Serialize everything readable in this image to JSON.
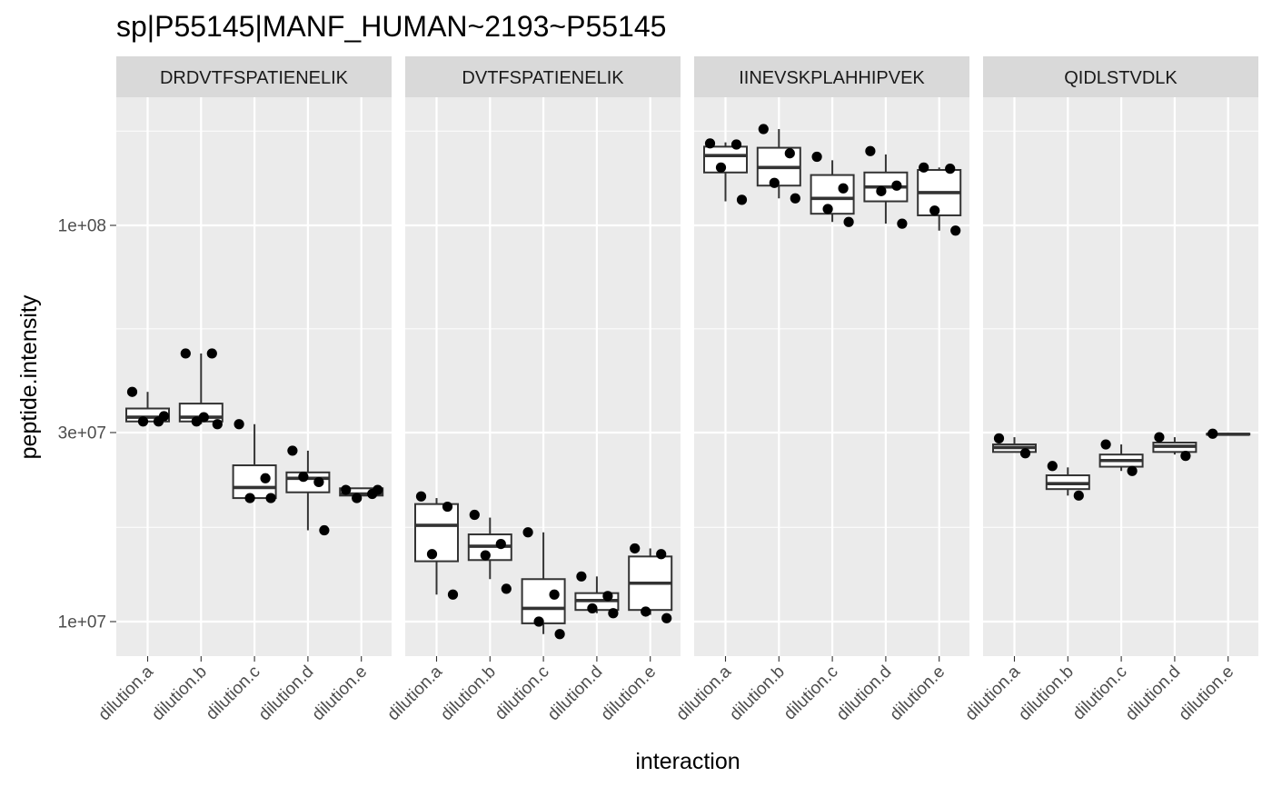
{
  "chart_data": {
    "type": "boxplot",
    "title": "sp|P55145|MANF_HUMAN~2193~P55145",
    "xlabel": "interaction",
    "ylabel": "peptide.intensity",
    "y_scale": "log10",
    "y_ticks": [
      {
        "value": 10000000,
        "label": "1e+07"
      },
      {
        "value": 30000000,
        "label": "3e+07"
      },
      {
        "value": 100000000,
        "label": "1e+08"
      }
    ],
    "categories": [
      "dilution.a",
      "dilution.b",
      "dilution.c",
      "dilution.d",
      "dilution.e"
    ],
    "grid": true,
    "colors": {
      "panel_background": "#ebebeb",
      "grid_line": "#ffffff",
      "strip_background": "#d9d9d9",
      "box_fill": "#ffffff",
      "box_line": "#333333",
      "point": "#000000"
    },
    "facets": [
      {
        "label": "DRDVTFSPATIENELIK",
        "groups": [
          {
            "category": "dilution.a",
            "min": 32000000,
            "q1": 32000000,
            "median": 32800000,
            "q3": 34500000,
            "max": 38000000,
            "points": [
              38000000,
              32000000,
              32000000,
              33000000
            ]
          },
          {
            "category": "dilution.b",
            "min": 31500000,
            "q1": 32000000,
            "median": 32800000,
            "q3": 35500000,
            "max": 47500000,
            "points": [
              47500000,
              47500000,
              32000000,
              31500000,
              32800000
            ]
          },
          {
            "category": "dilution.c",
            "min": 20500000,
            "q1": 20500000,
            "median": 21800000,
            "q3": 24800000,
            "max": 31500000,
            "points": [
              31500000,
              23000000,
              20500000,
              20500000
            ]
          },
          {
            "category": "dilution.d",
            "min": 17000000,
            "q1": 21200000,
            "median": 23000000,
            "q3": 23800000,
            "max": 27000000,
            "points": [
              27000000,
              22500000,
              23200000,
              17000000
            ]
          },
          {
            "category": "dilution.e",
            "min": 20800000,
            "q1": 20800000,
            "median": 21000000,
            "q3": 21700000,
            "max": 21700000,
            "points": [
              21500000,
              21000000,
              20500000,
              21500000
            ]
          }
        ]
      },
      {
        "label": "DVTFSPATIENELIK",
        "groups": [
          {
            "category": "dilution.a",
            "min": 11700000,
            "q1": 14200000,
            "median": 17500000,
            "q3": 19800000,
            "max": 20500000,
            "points": [
              20700000,
              19500000,
              14800000,
              11700000
            ]
          },
          {
            "category": "dilution.b",
            "min": 12800000,
            "q1": 14300000,
            "median": 15500000,
            "q3": 16600000,
            "max": 18300000,
            "points": [
              18600000,
              15700000,
              14700000,
              12100000
            ]
          },
          {
            "category": "dilution.c",
            "min": 9300000,
            "q1": 9900000,
            "median": 10800000,
            "q3": 12800000,
            "max": 16800000,
            "points": [
              16800000,
              11700000,
              10000000,
              9300000
            ]
          },
          {
            "category": "dilution.d",
            "min": 10500000,
            "q1": 10700000,
            "median": 11300000,
            "q3": 11800000,
            "max": 13000000,
            "points": [
              13000000,
              11600000,
              10800000,
              10500000
            ]
          },
          {
            "category": "dilution.e",
            "min": 10400000,
            "q1": 10700000,
            "median": 12500000,
            "q3": 14600000,
            "max": 15300000,
            "points": [
              15300000,
              14800000,
              10600000,
              10200000
            ]
          }
        ]
      },
      {
        "label": "IINEVSKPLAHHIPVEK",
        "groups": [
          {
            "category": "dilution.a",
            "min": 115000000,
            "q1": 136000000,
            "median": 150000000,
            "q3": 158000000,
            "max": 162000000,
            "points": [
              161000000,
              160000000,
              140000000,
              116000000
            ]
          },
          {
            "category": "dilution.b",
            "min": 117000000,
            "q1": 126000000,
            "median": 140000000,
            "q3": 157000000,
            "max": 175000000,
            "points": [
              175000000,
              152000000,
              128000000,
              117000000
            ]
          },
          {
            "category": "dilution.c",
            "min": 102000000,
            "q1": 107000000,
            "median": 117000000,
            "q3": 134000000,
            "max": 146000000,
            "points": [
              149000000,
              124000000,
              110000000,
              102000000
            ]
          },
          {
            "category": "dilution.d",
            "min": 101000000,
            "q1": 115000000,
            "median": 125000000,
            "q3": 136000000,
            "max": 151000000,
            "points": [
              154000000,
              126000000,
              122000000,
              101000000
            ]
          },
          {
            "category": "dilution.e",
            "min": 97000000,
            "q1": 106000000,
            "median": 121000000,
            "q3": 138000000,
            "max": 140000000,
            "points": [
              140000000,
              139000000,
              109000000,
              97000000
            ]
          }
        ]
      },
      {
        "label": "QIDLSTVDLK",
        "groups": [
          {
            "category": "dilution.a",
            "min": 26800000,
            "q1": 26800000,
            "median": 27500000,
            "q3": 28000000,
            "max": 29200000,
            "points": [
              29000000,
              26600000
            ]
          },
          {
            "category": "dilution.b",
            "min": 20800000,
            "q1": 21600000,
            "median": 22300000,
            "q3": 23400000,
            "max": 24500000,
            "points": [
              24700000,
              20800000
            ]
          },
          {
            "category": "dilution.c",
            "min": 24000000,
            "q1": 24600000,
            "median": 25500000,
            "q3": 26400000,
            "max": 28000000,
            "points": [
              28000000,
              24000000
            ]
          },
          {
            "category": "dilution.d",
            "min": 26400000,
            "q1": 26800000,
            "median": 27700000,
            "q3": 28300000,
            "max": 29200000,
            "points": [
              29200000,
              26200000
            ]
          },
          {
            "category": "dilution.e",
            "min": 29700000,
            "q1": 29700000,
            "median": 29700000,
            "q3": 29800000,
            "max": 29800000,
            "points": [
              29800000
            ]
          }
        ]
      }
    ]
  }
}
